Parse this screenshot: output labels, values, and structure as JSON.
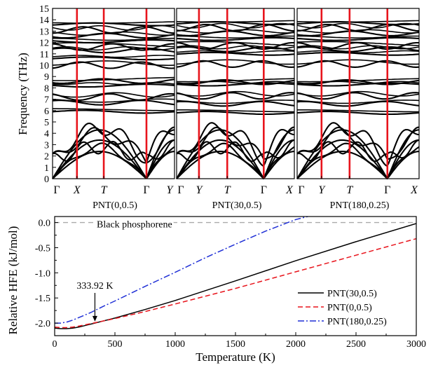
{
  "chart_data": [
    {
      "type": "line",
      "ylabel": "Frequency (THz)",
      "ylim": [
        0,
        15
      ],
      "yticks": [
        0,
        1,
        2,
        3,
        4,
        5,
        6,
        7,
        8,
        9,
        10,
        11,
        12,
        13,
        14,
        15
      ],
      "marker_color": "#e8141c",
      "band_color": "#000000",
      "panels": [
        {
          "label": "PNT(0,0.5)",
          "high_symmetry_points": [
            "Γ",
            "X",
            "T",
            "Γ",
            "Y"
          ],
          "lowest_band_at_high_symmetry_points": [
            0.0,
            2.4,
            1.9,
            0.0,
            2.2
          ],
          "flat_band_levels": [
            5.9,
            6.7,
            7.2,
            8.2,
            8.6,
            10.0,
            10.6,
            11.3,
            11.6,
            12.1,
            12.6,
            13.1,
            13.6
          ]
        },
        {
          "label": "PNT(30,0.5)",
          "high_symmetry_points": [
            "Γ",
            "Y",
            "T",
            "Γ",
            "X"
          ],
          "lowest_band_at_high_symmetry_points": [
            0.0,
            1.7,
            1.9,
            0.0,
            2.1
          ],
          "flat_band_levels": [
            5.8,
            6.6,
            7.3,
            8.3,
            8.5,
            10.1,
            11.0,
            11.4,
            11.7,
            12.3,
            12.8,
            13.3,
            13.7
          ]
        },
        {
          "label": "PNT(180,0.25)",
          "high_symmetry_points": [
            "Γ",
            "Y",
            "T",
            "Γ",
            "X"
          ],
          "lowest_band_at_high_symmetry_points": [
            0.0,
            1.6,
            1.8,
            0.0,
            2.0
          ],
          "flat_band_levels": [
            5.8,
            6.6,
            7.3,
            8.3,
            8.5,
            10.1,
            11.0,
            11.4,
            11.7,
            12.3,
            12.8,
            13.3,
            13.7
          ]
        }
      ]
    },
    {
      "type": "line",
      "xlabel": "Temperature (K)",
      "ylabel": "Relative HFE (kJ/mol)",
      "xlim": [
        0,
        3000
      ],
      "ylim": [
        -2.25,
        0.12
      ],
      "xticks": [
        0,
        500,
        1000,
        1500,
        2000,
        2500,
        3000
      ],
      "yticks": [
        0.0,
        -0.5,
        -1.0,
        -1.5,
        -2.0
      ],
      "ytick_labels": [
        "0.0",
        "-0.5",
        "-1.0",
        "-1.5",
        "-2.0"
      ],
      "reference_line": {
        "label": "Black phosphorene",
        "y": 0.0,
        "color": "#aaaaaa"
      },
      "annotation": {
        "text": "333.92 K",
        "x": 333.92,
        "y": -1.97
      },
      "legend_position": "lower-right",
      "series": [
        {
          "name": "PNT(30,0.5)",
          "color": "#000000",
          "style": "solid",
          "x": [
            0,
            50,
            100,
            150,
            200,
            300,
            400,
            500,
            750,
            1000,
            1500,
            2000,
            2500,
            3000
          ],
          "y": [
            -2.1,
            -2.11,
            -2.11,
            -2.1,
            -2.08,
            -2.02,
            -1.96,
            -1.9,
            -1.73,
            -1.55,
            -1.16,
            -0.76,
            -0.38,
            -0.02
          ]
        },
        {
          "name": "PNT(0,0.5)",
          "color": "#e8141c",
          "style": "dashed",
          "x": [
            0,
            50,
            100,
            150,
            200,
            300,
            400,
            500,
            750,
            1000,
            1500,
            2000,
            2500,
            3000
          ],
          "y": [
            -2.08,
            -2.09,
            -2.09,
            -2.08,
            -2.06,
            -2.01,
            -1.96,
            -1.91,
            -1.77,
            -1.62,
            -1.31,
            -0.98,
            -0.65,
            -0.32
          ]
        },
        {
          "name": "PNT(180,0.25)",
          "color": "#1f2fd6",
          "style": "dashdot",
          "x": [
            0,
            50,
            100,
            150,
            200,
            300,
            400,
            500,
            750,
            1000,
            1250,
            1500,
            1750,
            2000,
            2100
          ],
          "y": [
            -2.0,
            -2.0,
            -1.98,
            -1.94,
            -1.89,
            -1.79,
            -1.67,
            -1.56,
            -1.27,
            -0.99,
            -0.7,
            -0.43,
            -0.17,
            0.06,
            0.12
          ]
        }
      ]
    }
  ]
}
